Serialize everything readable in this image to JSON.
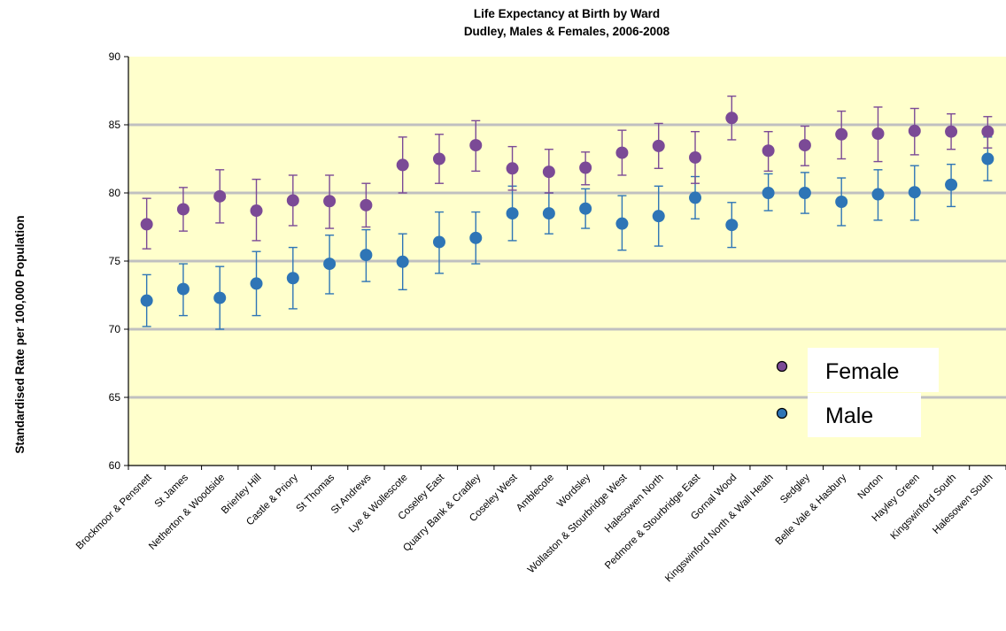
{
  "chart_data": {
    "type": "scatter",
    "title": "Life Expectancy at Birth by Ward",
    "subtitle": "Dudley, Males & Females, 2006-2008",
    "xlabel": "",
    "ylabel": "Standardised Rate per 100,000 Population",
    "ylim": [
      60,
      90
    ],
    "yticks": [
      60,
      65,
      70,
      75,
      80,
      85,
      90
    ],
    "grid": true,
    "legend_position": "bottom-right",
    "plot_background": "#FFFFCC",
    "grid_color": "#C0C0C0",
    "categories": [
      "Brockmoor & Pensnett",
      "St James",
      "Netherton & Woodside",
      "Brierley Hill",
      "Castle & Priory",
      "St Thomas",
      "St Andrews",
      "Lye & Wollescote",
      "Coseley East",
      "Quarry Bank & Cradley",
      "Coseley West",
      "Amblecote",
      "Wordsley",
      "Wollaston & Stourbridge West",
      "Halesowen North",
      "Pedmore & Stourbridge East",
      "Gornal Wood",
      "Kingswinford North & Wall Heath",
      "Sedgley",
      "Belle Vale & Hasbury",
      "Norton",
      "Hayley Green",
      "Kingswinford South",
      "Halesowen South"
    ],
    "series": [
      {
        "name": "Female",
        "color": "#7B4A96",
        "values": [
          77.7,
          78.8,
          79.75,
          78.7,
          79.45,
          79.4,
          79.1,
          82.05,
          82.5,
          83.5,
          81.8,
          81.55,
          81.85,
          82.95,
          83.45,
          82.6,
          85.5,
          83.1,
          83.5,
          84.3,
          84.35,
          84.55,
          84.5,
          84.5
        ],
        "lower": [
          75.9,
          77.2,
          77.8,
          76.5,
          77.6,
          77.4,
          77.5,
          80.0,
          80.7,
          81.6,
          80.2,
          80.0,
          80.6,
          81.3,
          81.8,
          80.7,
          83.9,
          81.6,
          82.0,
          82.5,
          82.3,
          82.8,
          83.2,
          83.3
        ],
        "upper": [
          79.6,
          80.4,
          81.7,
          81.0,
          81.3,
          81.3,
          80.7,
          84.1,
          84.3,
          85.3,
          83.4,
          83.2,
          83.0,
          84.6,
          85.1,
          84.5,
          87.1,
          84.5,
          84.9,
          86.0,
          86.3,
          86.2,
          85.8,
          85.6
        ]
      },
      {
        "name": "Male",
        "color": "#2E75B6",
        "values": [
          72.1,
          72.95,
          72.3,
          73.35,
          73.75,
          74.8,
          75.45,
          74.95,
          76.4,
          76.7,
          78.5,
          78.5,
          78.85,
          77.75,
          78.3,
          79.65,
          77.65,
          80.0,
          80.0,
          79.35,
          79.9,
          80.05,
          80.6,
          82.5
        ],
        "lower": [
          70.2,
          71.0,
          70.0,
          71.0,
          71.5,
          72.6,
          73.5,
          72.9,
          74.1,
          74.8,
          76.5,
          77.0,
          77.4,
          75.8,
          76.1,
          78.1,
          76.0,
          78.7,
          78.5,
          77.6,
          78.0,
          78.0,
          79.0,
          80.9
        ],
        "upper": [
          74.0,
          74.8,
          74.6,
          75.7,
          76.0,
          76.9,
          77.3,
          77.0,
          78.6,
          78.6,
          80.5,
          80.0,
          80.3,
          79.8,
          80.5,
          81.2,
          79.3,
          81.4,
          81.5,
          81.1,
          81.7,
          82.0,
          82.1,
          84.1
        ]
      }
    ]
  }
}
